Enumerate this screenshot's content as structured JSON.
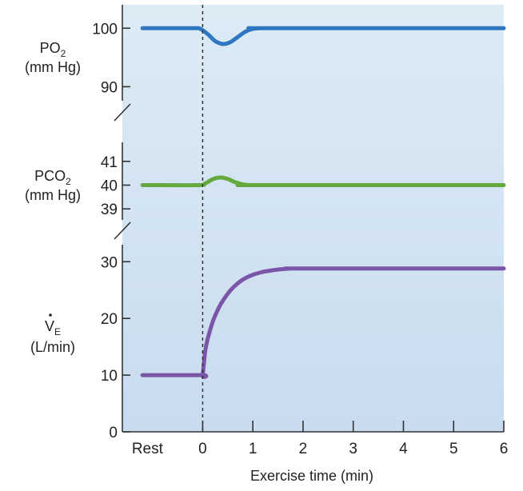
{
  "chart_data": {
    "type": "line",
    "xlabel": "Exercise time (min)",
    "x_ticks": [
      {
        "label": "Rest",
        "value": -1.1
      },
      {
        "label": "0",
        "value": 0
      },
      {
        "label": "1",
        "value": 1
      },
      {
        "label": "2",
        "value": 2
      },
      {
        "label": "3",
        "value": 3
      },
      {
        "label": "4",
        "value": 4
      },
      {
        "label": "5",
        "value": 5
      },
      {
        "label": "6",
        "value": 6
      }
    ],
    "xlim": [
      -1.6,
      6.0
    ],
    "exercise_onset_x": 0,
    "background_color": "#d4e4f1",
    "panels": [
      {
        "id": "po2",
        "ylabel_main": "PO",
        "ylabel_sub": "2",
        "ylabel_unit": "(mm Hg)",
        "ylim": [
          85,
          104
        ],
        "y_ticks": [
          90,
          100
        ],
        "color": "#2f77c0",
        "x": [
          -1.2,
          -0.2,
          -0.05,
          0.1,
          0.25,
          0.4,
          0.55,
          0.7,
          0.85,
          1.0,
          1.15,
          1.3,
          6.0
        ],
        "values": [
          100,
          100,
          99.9,
          99.0,
          97.8,
          97.3,
          97.6,
          98.5,
          99.4,
          99.9,
          100,
          100,
          100
        ]
      },
      {
        "id": "pco2",
        "ylabel_main": "PCO",
        "ylabel_sub": "2",
        "ylabel_unit": "(mm Hg)",
        "ylim": [
          38.2,
          41.8
        ],
        "y_ticks": [
          39,
          40,
          41
        ],
        "color": "#64a93e",
        "x": [
          -1.2,
          -0.1,
          0.05,
          0.2,
          0.35,
          0.5,
          0.65,
          0.8,
          0.95,
          1.1,
          6.0
        ],
        "values": [
          40,
          40,
          40.07,
          40.25,
          40.32,
          40.26,
          40.12,
          40.03,
          40,
          40,
          40
        ]
      },
      {
        "id": "ve",
        "ylabel_main": "V",
        "ylabel_sub": "E",
        "ylabel_unit": "(L/min)",
        "ylim": [
          0,
          33
        ],
        "y_ticks": [
          0,
          10,
          20,
          30
        ],
        "color": "#7a55a8",
        "x": [
          -1.2,
          -0.02,
          0,
          0.05,
          0.1,
          0.2,
          0.3,
          0.4,
          0.55,
          0.7,
          0.85,
          1.0,
          1.2,
          1.4,
          1.6,
          1.8,
          2.0,
          6.0
        ],
        "values": [
          10,
          10,
          10,
          14.2,
          16.4,
          19.4,
          21.5,
          23.1,
          24.9,
          26.2,
          27.1,
          27.7,
          28.2,
          28.5,
          28.7,
          28.8,
          28.8,
          28.8
        ]
      }
    ]
  }
}
